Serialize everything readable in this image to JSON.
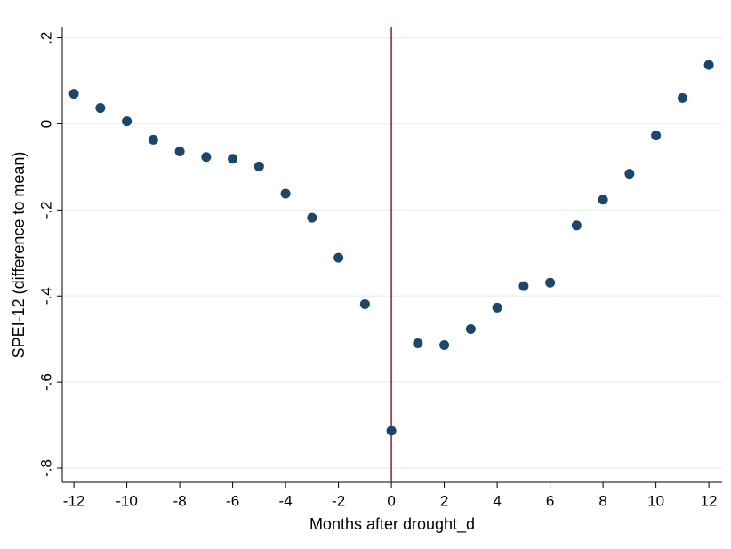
{
  "chart_data": {
    "type": "scatter",
    "x_label": "Months after drought_d",
    "y_label": "SPEI-12 (difference to mean)",
    "x": [
      -12,
      -11,
      -10,
      -9,
      -8,
      -7,
      -6,
      -5,
      -4,
      -3,
      -2,
      -1,
      0,
      1,
      2,
      3,
      4,
      5,
      6,
      7,
      8,
      9,
      10,
      11,
      12
    ],
    "values": [
      0.07,
      0.037,
      0.006,
      -0.037,
      -0.064,
      -0.077,
      -0.081,
      -0.099,
      -0.162,
      -0.218,
      -0.311,
      -0.419,
      -0.713,
      -0.51,
      -0.514,
      -0.477,
      -0.427,
      -0.377,
      -0.369,
      -0.236,
      -0.176,
      -0.116,
      -0.027,
      0.06,
      0.137
    ],
    "color": "#1a476f",
    "xlim": [
      -12.44,
      12.5
    ],
    "ylim": [
      -0.833,
      0.226
    ],
    "xticks": [
      -12,
      -10,
      -8,
      -6,
      -4,
      -2,
      0,
      2,
      4,
      6,
      8,
      10,
      12
    ],
    "yticks": [
      {
        "value": 0.2,
        "label": ".2"
      },
      0,
      {
        "value": -0.2,
        "label": "-.2"
      },
      {
        "value": -0.4,
        "label": "-.4"
      },
      {
        "value": -0.6,
        "label": "-.6"
      },
      {
        "value": -0.8,
        "label": "-.8"
      }
    ],
    "grid": true,
    "vline": 0,
    "vline_color": "#a3192e"
  }
}
